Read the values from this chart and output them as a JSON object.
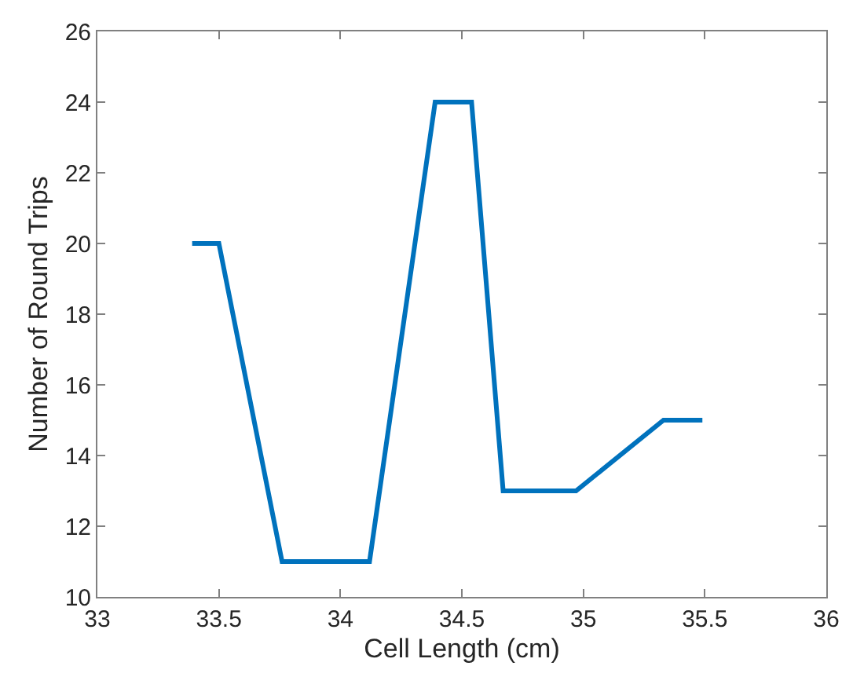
{
  "chart_data": {
    "type": "line",
    "xlabel": "Cell Length (cm)",
    "ylabel": "Number of Round Trips",
    "x": [
      33.39,
      33.5,
      33.76,
      34.12,
      34.39,
      34.54,
      34.67,
      34.97,
      35.33,
      35.49
    ],
    "series": [
      {
        "color": "#0072bd",
        "values": [
          20,
          20,
          11,
          11,
          24,
          24,
          13,
          13,
          15,
          15
        ]
      }
    ],
    "xlim": [
      33,
      36
    ],
    "xticks": [
      33,
      33.5,
      34,
      34.5,
      35,
      35.5,
      36
    ],
    "ylim": [
      10,
      26
    ],
    "yticks": [
      10,
      12,
      14,
      16,
      18,
      20,
      22,
      24,
      26
    ],
    "legend": false,
    "marker": "none",
    "line_style": "solid"
  }
}
